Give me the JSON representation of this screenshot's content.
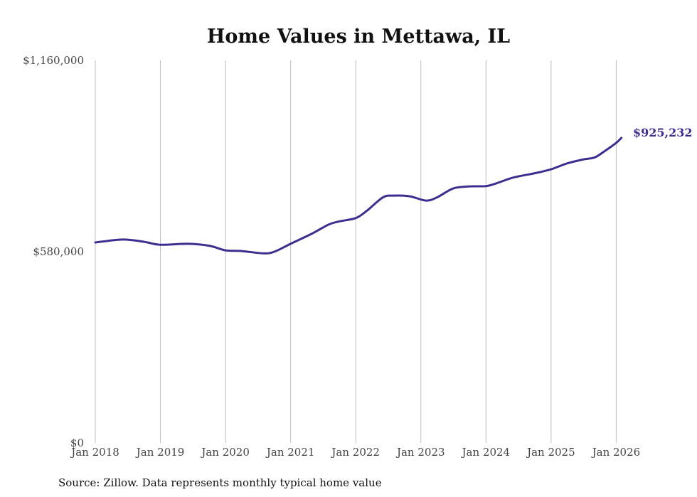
{
  "chart_data": {
    "type": "line",
    "title": "Home Values in Mettawa, IL",
    "xlabel": "",
    "ylabel": "",
    "ylim": [
      0,
      1160000
    ],
    "xlim": [
      2018.0,
      2026.17
    ],
    "y_ticks": [
      {
        "value": 0,
        "label": "$0"
      },
      {
        "value": 580000,
        "label": "$580,000"
      },
      {
        "value": 1160000,
        "label": "$1,160,000"
      }
    ],
    "x_ticks": [
      {
        "value": 2018,
        "label": "Jan 2018"
      },
      {
        "value": 2019,
        "label": "Jan 2019"
      },
      {
        "value": 2020,
        "label": "Jan 2020"
      },
      {
        "value": 2021,
        "label": "Jan 2021"
      },
      {
        "value": 2022,
        "label": "Jan 2022"
      },
      {
        "value": 2023,
        "label": "Jan 2023"
      },
      {
        "value": 2024,
        "label": "Jan 2024"
      },
      {
        "value": 2025,
        "label": "Jan 2025"
      },
      {
        "value": 2026,
        "label": "Jan 2026"
      }
    ],
    "grid": "vertical",
    "series": [
      {
        "name": "Typical home value",
        "color": "#3d2f8f",
        "x": [
          2018.0,
          2018.42,
          2018.75,
          2019.0,
          2019.42,
          2019.75,
          2020.0,
          2020.25,
          2020.58,
          2020.75,
          2021.0,
          2021.33,
          2021.58,
          2021.75,
          2022.0,
          2022.17,
          2022.42,
          2022.58,
          2022.83,
          2023.08,
          2023.25,
          2023.5,
          2023.75,
          2024.0,
          2024.17,
          2024.42,
          2024.75,
          2025.0,
          2025.25,
          2025.5,
          2025.67,
          2025.83,
          2026.0,
          2026.08
        ],
        "y": [
          608000,
          617000,
          610000,
          601000,
          604000,
          598000,
          584000,
          582000,
          575000,
          580000,
          604000,
          635000,
          662000,
          672000,
          682000,
          704000,
          745000,
          750000,
          748000,
          735000,
          745000,
          772000,
          778000,
          779000,
          788000,
          805000,
          818000,
          830000,
          848000,
          860000,
          866000,
          886000,
          910000,
          925232
        ]
      }
    ],
    "end_label": "$925,232",
    "source": "Source: Zillow. Data represents monthly typical home value"
  }
}
